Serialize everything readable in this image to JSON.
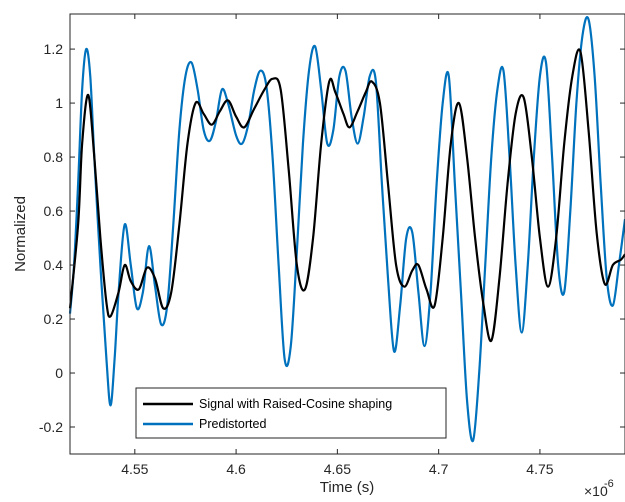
{
  "chart_data": {
    "type": "line",
    "xlabel": "Time (s)",
    "ylabel": "Normalized",
    "x_exponent_label": "×10",
    "x_exponent_power": "-6",
    "xlim": [
      4.518,
      4.792
    ],
    "ylim": [
      -0.3,
      1.33
    ],
    "xticks": [
      4.55,
      4.6,
      4.65,
      4.7,
      4.75
    ],
    "xtick_labels": [
      "4.55",
      "4.6",
      "4.65",
      "4.7",
      "4.75"
    ],
    "yticks": [
      -0.2,
      0,
      0.2,
      0.4,
      0.6,
      0.8,
      1.0,
      1.2
    ],
    "ytick_labels": [
      "-0.2",
      "0",
      "0.2",
      "0.4",
      "0.6",
      "0.8",
      "1",
      "1.2"
    ],
    "grid": false,
    "legend_position": "bottom-left",
    "series": [
      {
        "name": "Signal with Raised-Cosine shaping",
        "color": "#000000",
        "x": [
          4.518,
          4.522,
          4.524,
          4.527,
          4.53,
          4.533,
          4.536,
          4.538,
          4.542,
          4.545,
          4.548,
          4.552,
          4.556,
          4.56,
          4.564,
          4.568,
          4.572,
          4.576,
          4.58,
          4.584,
          4.588,
          4.592,
          4.596,
          4.6,
          4.604,
          4.609,
          4.614,
          4.618,
          4.622,
          4.626,
          4.63,
          4.634,
          4.638,
          4.642,
          4.646,
          4.649,
          4.653,
          4.656,
          4.66,
          4.664,
          4.667,
          4.671,
          4.675,
          4.679,
          4.683,
          4.687,
          4.69,
          4.694,
          4.698,
          4.702,
          4.706,
          4.71,
          4.714,
          4.718,
          4.722,
          4.726,
          4.73,
          4.734,
          4.738,
          4.742,
          4.746,
          4.75,
          4.754,
          4.758,
          4.762,
          4.766,
          4.77,
          4.774,
          4.778,
          4.782,
          4.786,
          4.79,
          4.792
        ],
        "y": [
          0.24,
          0.55,
          0.85,
          1.03,
          0.8,
          0.5,
          0.26,
          0.21,
          0.3,
          0.4,
          0.34,
          0.31,
          0.39,
          0.35,
          0.24,
          0.3,
          0.55,
          0.85,
          1.0,
          0.96,
          0.92,
          0.97,
          1.01,
          0.95,
          0.91,
          0.98,
          1.05,
          1.09,
          1.05,
          0.75,
          0.4,
          0.31,
          0.5,
          0.85,
          1.08,
          1.04,
          0.96,
          0.91,
          0.97,
          1.04,
          1.08,
          1.0,
          0.7,
          0.4,
          0.32,
          0.38,
          0.4,
          0.31,
          0.25,
          0.5,
          0.85,
          1.0,
          0.8,
          0.5,
          0.26,
          0.12,
          0.35,
          0.7,
          0.96,
          1.02,
          0.8,
          0.5,
          0.32,
          0.5,
          0.85,
          1.1,
          1.19,
          0.9,
          0.52,
          0.33,
          0.4,
          0.42,
          0.44
        ]
      },
      {
        "name": "Predistorted",
        "color": "#0072BD",
        "x": [
          4.518,
          4.52,
          4.522,
          4.524,
          4.526,
          4.528,
          4.53,
          4.533,
          4.536,
          4.538,
          4.54,
          4.542,
          4.545,
          4.548,
          4.551,
          4.554,
          4.557,
          4.56,
          4.563,
          4.566,
          4.569,
          4.572,
          4.575,
          4.578,
          4.581,
          4.584,
          4.587,
          4.59,
          4.593,
          4.596,
          4.6,
          4.603,
          4.606,
          4.609,
          4.612,
          4.615,
          4.618,
          4.621,
          4.624,
          4.627,
          4.63,
          4.633,
          4.636,
          4.639,
          4.642,
          4.645,
          4.648,
          4.651,
          4.654,
          4.657,
          4.66,
          4.663,
          4.666,
          4.669,
          4.672,
          4.675,
          4.678,
          4.681,
          4.684,
          4.687,
          4.69,
          4.693,
          4.696,
          4.699,
          4.702,
          4.705,
          4.708,
          4.711,
          4.714,
          4.717,
          4.72,
          4.723,
          4.726,
          4.729,
          4.732,
          4.735,
          4.738,
          4.741,
          4.744,
          4.747,
          4.75,
          4.753,
          4.756,
          4.759,
          4.762,
          4.765,
          4.768,
          4.771,
          4.774,
          4.777,
          4.78,
          4.783,
          4.786,
          4.789,
          4.792
        ],
        "y": [
          0.22,
          0.4,
          0.7,
          1.05,
          1.2,
          1.1,
          0.8,
          0.4,
          0.05,
          -0.12,
          0.05,
          0.3,
          0.55,
          0.4,
          0.24,
          0.3,
          0.47,
          0.32,
          0.18,
          0.25,
          0.55,
          0.9,
          1.1,
          1.15,
          1.05,
          0.9,
          0.86,
          0.93,
          1.05,
          1.0,
          0.88,
          0.85,
          0.92,
          1.05,
          1.12,
          1.06,
          0.8,
          0.4,
          0.05,
          0.1,
          0.45,
          0.85,
          1.12,
          1.21,
          1.05,
          0.85,
          0.9,
          1.1,
          1.12,
          0.95,
          0.85,
          0.95,
          1.1,
          1.08,
          0.7,
          0.35,
          0.08,
          0.25,
          0.5,
          0.52,
          0.3,
          0.1,
          0.3,
          0.7,
          1.0,
          1.1,
          0.7,
          0.3,
          -0.1,
          -0.25,
          0.0,
          0.4,
          0.8,
          1.05,
          1.12,
          0.8,
          0.4,
          0.15,
          0.4,
          0.8,
          1.1,
          1.15,
          0.8,
          0.4,
          0.3,
          0.6,
          1.0,
          1.25,
          1.31,
          1.1,
          0.7,
          0.35,
          0.25,
          0.4,
          0.57
        ]
      }
    ]
  }
}
